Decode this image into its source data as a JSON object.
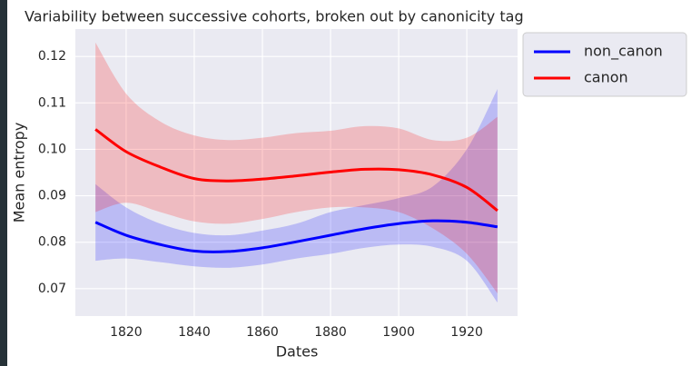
{
  "chart_data": {
    "type": "line",
    "title": "Variability between successive cohorts, broken out by canonicity tag",
    "xlabel": "Dates",
    "ylabel": "Mean entropy",
    "x": [
      1811,
      1820,
      1830,
      1840,
      1850,
      1860,
      1870,
      1880,
      1890,
      1900,
      1910,
      1920,
      1929
    ],
    "series": [
      {
        "name": "non_canon",
        "color": "#0000ff",
        "values": [
          0.0843,
          0.0815,
          0.0795,
          0.0781,
          0.078,
          0.0788,
          0.0801,
          0.0815,
          0.0829,
          0.084,
          0.0846,
          0.0843,
          0.0833
        ],
        "upper": [
          0.0925,
          0.0875,
          0.084,
          0.082,
          0.0815,
          0.0825,
          0.084,
          0.0865,
          0.088,
          0.0895,
          0.092,
          0.1,
          0.113
        ],
        "lower": [
          0.076,
          0.0765,
          0.0757,
          0.0748,
          0.0745,
          0.0752,
          0.0765,
          0.0775,
          0.0788,
          0.0795,
          0.079,
          0.076,
          0.067
        ]
      },
      {
        "name": "canon",
        "color": "#ff0000",
        "values": [
          0.1043,
          0.0995,
          0.0962,
          0.0937,
          0.0932,
          0.0936,
          0.0943,
          0.0951,
          0.0957,
          0.0956,
          0.0945,
          0.0918,
          0.0868
        ],
        "upper": [
          0.123,
          0.112,
          0.106,
          0.103,
          0.102,
          0.1025,
          0.1035,
          0.104,
          0.105,
          0.1045,
          0.102,
          0.1025,
          0.107
        ],
        "lower": [
          0.0865,
          0.0885,
          0.0865,
          0.0845,
          0.084,
          0.085,
          0.0865,
          0.0875,
          0.0875,
          0.0865,
          0.083,
          0.0775,
          0.069
        ]
      }
    ],
    "xlim": [
      1805.1,
      1934.9
    ],
    "xticks": [
      1820,
      1840,
      1860,
      1880,
      1900,
      1920
    ],
    "ylim": [
      0.0641,
      0.1259
    ],
    "yticks": [
      0.07,
      0.08,
      0.09,
      {
        "value": 0.1,
        "label": "0.10"
      },
      0.11,
      0.12
    ],
    "grid": true,
    "legend": "outside right"
  }
}
